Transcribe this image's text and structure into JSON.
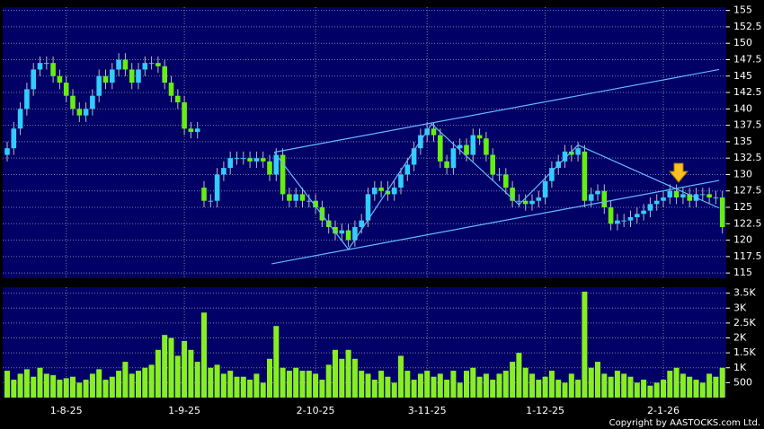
{
  "chart_data": {
    "type": "candlestick",
    "categories": [
      null,
      null,
      null,
      null,
      null,
      null,
      null,
      null,
      null,
      "1-8-25",
      null,
      null,
      null,
      null,
      null,
      null,
      null,
      null,
      null,
      null,
      null,
      null,
      null,
      null,
      null,
      null,
      null,
      "1-9-25",
      null,
      null,
      null,
      null,
      null,
      null,
      null,
      null,
      null,
      null,
      null,
      null,
      null,
      null,
      null,
      null,
      null,
      null,
      null,
      "2-10-25",
      null,
      null,
      null,
      null,
      null,
      null,
      null,
      null,
      null,
      null,
      null,
      null,
      null,
      null,
      null,
      null,
      "3-11-25",
      null,
      null,
      null,
      null,
      null,
      null,
      null,
      null,
      null,
      null,
      null,
      null,
      null,
      null,
      null,
      null,
      null,
      "1-12-25",
      null,
      null,
      null,
      null,
      null,
      null,
      null,
      null,
      null,
      null,
      null,
      null,
      null,
      null,
      null,
      null,
      null,
      "2-1-26",
      null,
      null,
      null,
      null,
      null,
      null,
      null,
      null,
      null
    ],
    "open": [
      133,
      134,
      137,
      140,
      143,
      146,
      147,
      147,
      145,
      144,
      142,
      140,
      139,
      140,
      142,
      145,
      144,
      146,
      147.5,
      146,
      144,
      146,
      147,
      147,
      146.5,
      144,
      142,
      141,
      137,
      136.5,
      128,
      126,
      126,
      130,
      131,
      132.5,
      132.5,
      132.5,
      132,
      132.5,
      132,
      130,
      133,
      127,
      126,
      127,
      126,
      126,
      125,
      123,
      122,
      121,
      121.5,
      120,
      122,
      123,
      127,
      128,
      127.5,
      127,
      128,
      130,
      131.5,
      134,
      136,
      137,
      136,
      132,
      131,
      134,
      134.5,
      133,
      136,
      135.5,
      133,
      130,
      130,
      128,
      126,
      126,
      125.5,
      126,
      126.5,
      129,
      131,
      132,
      133.5,
      133,
      133.5,
      126,
      127,
      127.5,
      125,
      122.5,
      123,
      123,
      123.5,
      124,
      124.5,
      125.5,
      126,
      126.5,
      127.5,
      126.5,
      127,
      126,
      127,
      127,
      126.5,
      126.5
    ],
    "high": [
      135,
      138,
      141,
      144,
      147,
      148,
      148,
      148,
      146,
      145,
      143,
      141,
      141,
      143,
      146,
      146,
      147,
      148.5,
      148.5,
      147,
      147,
      148,
      148,
      148,
      147.5,
      145,
      143,
      142,
      138,
      138,
      129,
      127,
      131,
      132,
      133.5,
      133.5,
      133.5,
      133.5,
      133.5,
      133.5,
      133,
      134,
      134,
      128,
      128,
      128,
      127,
      127,
      126,
      124,
      123,
      122.5,
      122.5,
      123,
      124,
      128,
      129,
      129,
      129,
      129,
      131,
      132.5,
      135,
      137,
      138,
      138,
      137,
      133,
      135,
      135.5,
      135.5,
      137,
      137,
      136.5,
      134,
      131,
      131,
      129,
      127,
      127,
      127,
      127.5,
      130,
      132,
      133,
      134.5,
      134.5,
      135,
      134.5,
      128,
      128.5,
      128.5,
      126,
      124,
      124,
      124.5,
      125,
      125.5,
      126.5,
      127,
      127.5,
      128.5,
      128.5,
      128,
      128,
      128,
      128,
      128,
      127.5,
      127.5
    ],
    "low": [
      132,
      133,
      136,
      139,
      142,
      145,
      146,
      144,
      143,
      141,
      139,
      138,
      138,
      139,
      141,
      143,
      143,
      145,
      145,
      143,
      143,
      145,
      146,
      145.5,
      143,
      141,
      140,
      136,
      135.5,
      135.5,
      125,
      125,
      125,
      129,
      130,
      131.5,
      131.5,
      131,
      131,
      131,
      129,
      129,
      126,
      125,
      125,
      125,
      125,
      124,
      122,
      121,
      120,
      120,
      119,
      119,
      121,
      122,
      126,
      126.5,
      126,
      126,
      127,
      129,
      130.5,
      133,
      135,
      135,
      131,
      130,
      130,
      133,
      132,
      132,
      134.5,
      132,
      129,
      129,
      127,
      125,
      125,
      124.5,
      124.5,
      125,
      125.5,
      128,
      130,
      131,
      132,
      132,
      125,
      125,
      126,
      124,
      121.5,
      121.5,
      122,
      122,
      122.5,
      123,
      123.5,
      124.5,
      125,
      125.5,
      125.5,
      125.5,
      125,
      125,
      126,
      125.5,
      125.5,
      121
    ],
    "close": [
      134,
      137,
      140,
      143,
      146,
      147,
      147,
      145,
      144,
      142,
      140,
      139,
      140,
      142,
      145,
      144,
      146,
      147.5,
      146,
      144,
      146,
      147,
      147,
      146.5,
      144,
      142,
      141,
      137,
      136.5,
      137,
      126,
      126,
      130,
      131,
      132.5,
      132.5,
      132.5,
      132,
      132.5,
      132,
      130,
      133,
      127,
      126,
      127,
      126,
      126,
      125,
      123,
      122,
      121,
      121.5,
      120,
      122,
      123,
      127,
      128,
      127.5,
      127,
      128,
      130,
      131.5,
      134,
      136,
      137,
      136,
      132,
      131,
      134,
      134.5,
      133,
      136,
      135.5,
      133,
      130,
      130,
      128,
      126,
      126,
      125.5,
      126,
      126.5,
      129,
      131,
      132,
      133.5,
      133,
      134,
      126,
      127,
      127.5,
      125,
      122.5,
      123,
      123,
      123.5,
      124,
      124.5,
      125.5,
      126,
      126.5,
      127.5,
      126.5,
      127,
      126,
      127,
      127,
      126.5,
      126.5,
      122
    ],
    "volume": [
      900,
      600,
      800,
      950,
      700,
      1000,
      800,
      750,
      600,
      650,
      700,
      500,
      600,
      800,
      950,
      600,
      700,
      900,
      1200,
      800,
      900,
      1000,
      1100,
      1600,
      2100,
      2000,
      1400,
      1900,
      1600,
      1200,
      2850,
      1000,
      1100,
      800,
      900,
      700,
      700,
      600,
      800,
      500,
      1300,
      2400,
      1000,
      900,
      1000,
      900,
      900,
      800,
      600,
      1100,
      1600,
      1300,
      1600,
      1300,
      900,
      800,
      600,
      900,
      700,
      500,
      1400,
      900,
      600,
      800,
      900,
      700,
      800,
      600,
      900,
      500,
      900,
      1000,
      700,
      800,
      600,
      800,
      900,
      1200,
      1500,
      1000,
      800,
      600,
      700,
      900,
      600,
      500,
      800,
      600,
      3550,
      1000,
      1200,
      800,
      700,
      900,
      800,
      700,
      500,
      600,
      400,
      500,
      600,
      900,
      1000,
      800,
      700,
      600,
      500,
      800,
      700,
      1000
    ],
    "up_color": "#33ccff",
    "down_color": "#66ee11",
    "volume_color": "#88ee22",
    "trendline_color": "#66b8ff",
    "ylim": [
      114.2,
      155.5
    ],
    "yticks": [
      115,
      117.5,
      120,
      122.5,
      125,
      127.5,
      130,
      132.5,
      135,
      137.5,
      140,
      142.5,
      145,
      147.5,
      150,
      152.5,
      155
    ],
    "y2lim": [
      0,
      3700
    ],
    "y2ticks": [
      500,
      {
        "value": 1000,
        "label": "1K"
      },
      {
        "value": 1500,
        "label": "1.5K"
      },
      {
        "value": 2000,
        "label": "2K"
      },
      {
        "value": 2500,
        "label": "2.5K"
      },
      {
        "value": 3000,
        "label": "3K"
      },
      {
        "value": 3500,
        "label": "3.5K"
      }
    ],
    "trendlines": [
      {
        "points": [
          [
            40.3,
            116.4
          ],
          [
            108.5,
            129.1
          ]
        ]
      },
      {
        "points": [
          [
            40.7,
            133.4
          ],
          [
            108.5,
            146
          ]
        ]
      },
      {
        "points": [
          [
            40.7,
            133.4
          ],
          [
            52,
            118.6
          ],
          [
            64.7,
            137.7
          ],
          [
            78,
            125.4
          ],
          [
            87,
            134.5
          ],
          [
            108.5,
            124.9
          ]
        ]
      }
    ],
    "grid": true,
    "copyright": "Copyright by AASTOCKS.com Ltd."
  }
}
